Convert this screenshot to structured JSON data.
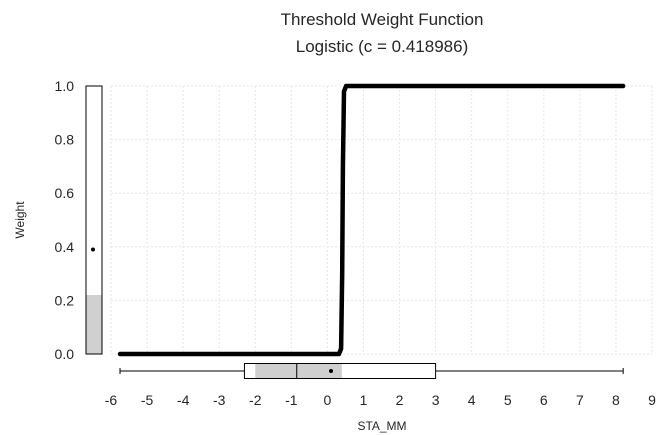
{
  "chart_data": {
    "type": "line",
    "title": "Threshold Weight Function",
    "subtitle": "Logistic (c = 0.418986)",
    "xlabel": "STA_MM",
    "ylabel": "Weight",
    "xlim": [
      -6,
      9
    ],
    "ylim": [
      0,
      1
    ],
    "x_ticks": [
      -6,
      -5,
      -4,
      -3,
      -2,
      -1,
      0,
      1,
      2,
      3,
      4,
      5,
      6,
      7,
      8,
      9
    ],
    "y_ticks": [
      "0.0",
      "0.2",
      "0.4",
      "0.6",
      "0.8",
      "1.0"
    ],
    "grid": true,
    "legend": "none",
    "line_color": "#000000",
    "series": [
      {
        "x": [
          -5.75,
          0.32,
          0.38,
          0.41,
          0.42,
          0.43,
          0.46,
          0.52,
          8.2
        ],
        "y": [
          0.0,
          0.0,
          0.02,
          0.3,
          0.5,
          0.7,
          0.98,
          1.0,
          1.0
        ]
      }
    ],
    "weight_marginal": {
      "fill_fraction": 0.22,
      "mean": 0.39,
      "fill_color": "#d0d0d0"
    },
    "x_boxplot": {
      "min": -5.75,
      "q1": -2.3,
      "inner_low": -2.0,
      "median": -0.85,
      "mean": 0.1,
      "inner_high": 0.4,
      "q3": 3.0,
      "max": 8.2,
      "fill_color": "#cfcfcf"
    }
  }
}
